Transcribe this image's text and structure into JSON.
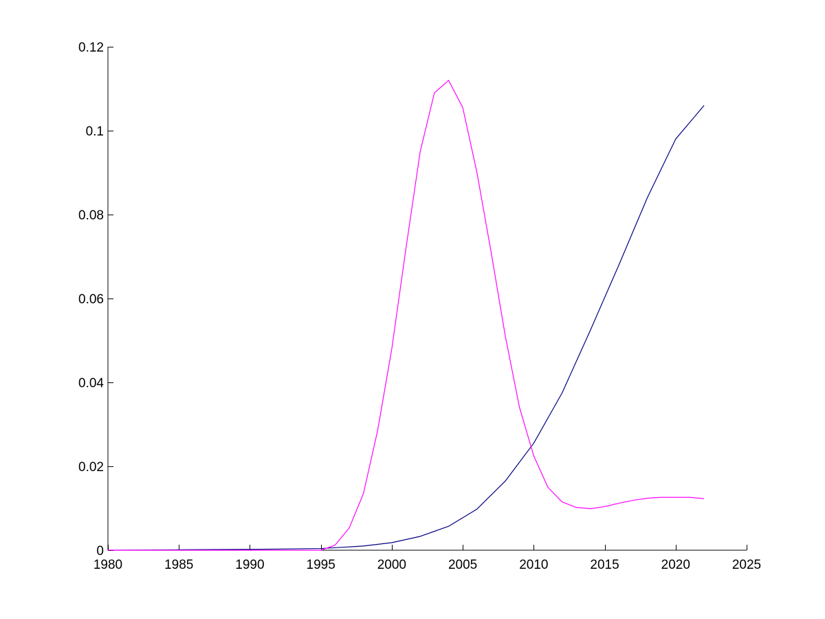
{
  "chart_data": {
    "type": "line",
    "title": "",
    "xlabel": "",
    "ylabel": "",
    "xlim": [
      1980,
      2025
    ],
    "ylim": [
      0,
      0.12
    ],
    "x_ticks": [
      1980,
      1985,
      1990,
      1995,
      2000,
      2005,
      2010,
      2015,
      2020,
      2025
    ],
    "y_ticks": [
      0,
      0.02,
      0.04,
      0.06,
      0.08,
      0.1,
      0.12
    ],
    "x_tick_labels": [
      "1980",
      "1985",
      "1990",
      "1995",
      "2000",
      "2005",
      "2010",
      "2015",
      "2020",
      "2025"
    ],
    "y_tick_labels": [
      "0",
      "0.02",
      "0.04",
      "0.06",
      "0.08",
      "0.1",
      "0.12"
    ],
    "grid": false,
    "legend": false,
    "series": [
      {
        "color": "#000080",
        "x": [
          1980,
          1985,
          1990,
          1995,
          1998,
          2000,
          2002,
          2004,
          2006,
          2008,
          2010,
          2012,
          2014,
          2016,
          2018,
          2020,
          2022
        ],
        "values": [
          0.0,
          0.0001,
          0.0002,
          0.0004,
          0.001,
          0.0018,
          0.0033,
          0.0057,
          0.0098,
          0.0165,
          0.0255,
          0.0375,
          0.0525,
          0.068,
          0.084,
          0.098,
          0.106
        ]
      },
      {
        "color": "#ff00ff",
        "x": [
          1980,
          1995,
          1996,
          1997,
          1998,
          1999,
          2000,
          2001,
          2002,
          2003,
          2004,
          2005,
          2006,
          2007,
          2008,
          2009,
          2010,
          2011,
          2012,
          2013,
          2014,
          2015,
          2016,
          2017,
          2018,
          2019,
          2020,
          2021,
          2022
        ],
        "values": [
          0.0,
          0.0,
          0.0012,
          0.0053,
          0.0135,
          0.0285,
          0.048,
          0.072,
          0.095,
          0.109,
          0.112,
          0.1055,
          0.09,
          0.071,
          0.051,
          0.034,
          0.0225,
          0.015,
          0.0115,
          0.0102,
          0.0099,
          0.0104,
          0.0112,
          0.0119,
          0.0124,
          0.0126,
          0.0126,
          0.0126,
          0.0123
        ]
      }
    ]
  }
}
